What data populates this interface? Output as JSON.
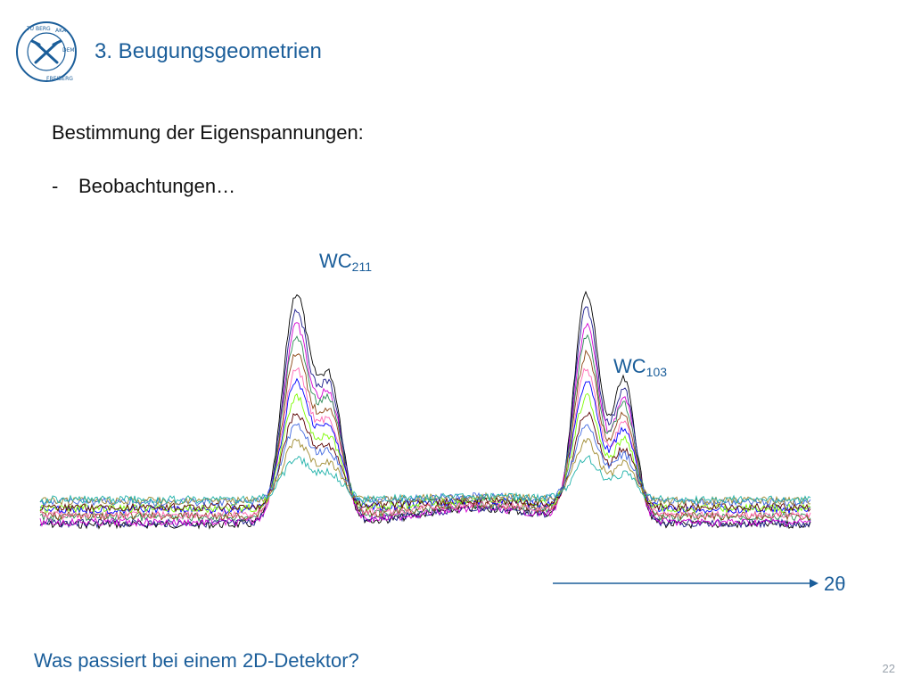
{
  "header": {
    "section_title": "3. Beugungsgeometrien",
    "logo_text": "TU BERGAKADEMIE FREIBERG"
  },
  "content": {
    "heading": "Bestimmung der Eigenspannungen:",
    "bullet_dash": "-",
    "bullet_text": "Beobachtungen…"
  },
  "chart_data": {
    "type": "line",
    "x_axis_label": "2θ",
    "peak_labels": [
      {
        "main": "WC",
        "sub": "211"
      },
      {
        "main": "WC",
        "sub": "103"
      }
    ],
    "num_series": 12,
    "series_colors": [
      "#000000",
      "#1a1a8c",
      "#d400d4",
      "#2e8b57",
      "#8b4513",
      "#ff69b4",
      "#0000ff",
      "#7cfc00",
      "#5a0000",
      "#4169e1",
      "#a08c32",
      "#20b2aa"
    ],
    "grid": false,
    "legend": "none",
    "axis_color": "#1b5e9a"
  },
  "footer": {
    "question": "Was passiert bei einem 2D-Detektor?",
    "page_number": "22"
  }
}
